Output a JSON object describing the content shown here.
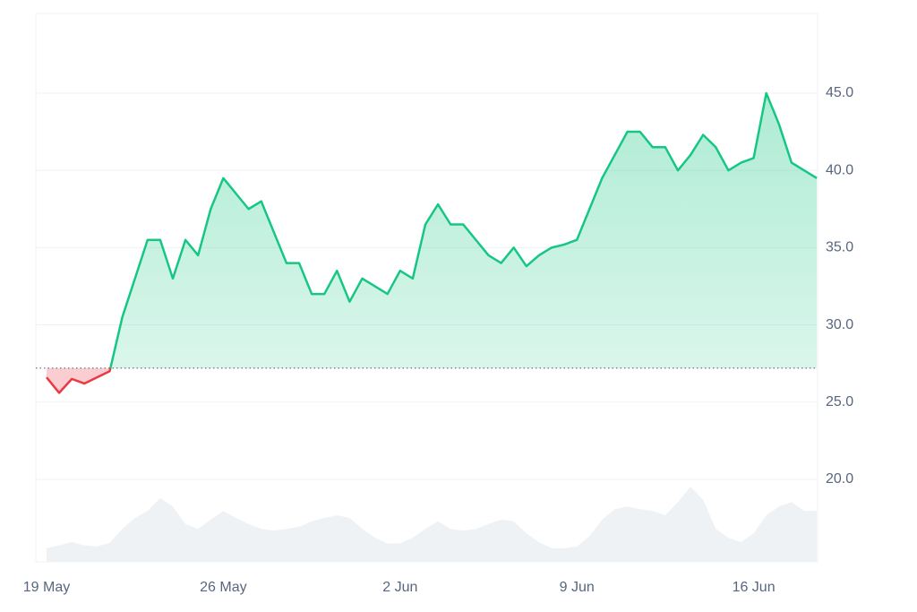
{
  "chart_data": {
    "type": "line",
    "categories": [
      "19 May",
      null,
      null,
      null,
      null,
      null,
      null,
      null,
      null,
      null,
      null,
      null,
      null,
      null,
      "26 May",
      null,
      null,
      null,
      null,
      null,
      null,
      null,
      null,
      null,
      null,
      null,
      null,
      null,
      "2 Jun",
      null,
      null,
      null,
      null,
      null,
      null,
      null,
      null,
      null,
      null,
      null,
      null,
      null,
      "9 Jun",
      null,
      null,
      null,
      null,
      null,
      null,
      null,
      null,
      null,
      null,
      null,
      null,
      null,
      "16 Jun",
      null,
      null,
      null,
      null,
      null
    ],
    "values": [
      26.6,
      25.6,
      26.5,
      26.2,
      26.6,
      27.0,
      30.5,
      33.0,
      35.5,
      35.5,
      33.0,
      35.5,
      34.5,
      37.5,
      39.5,
      38.5,
      37.5,
      38.0,
      36.0,
      34.0,
      34.0,
      32.0,
      32.0,
      33.5,
      31.5,
      33.0,
      32.5,
      32.0,
      33.5,
      33.0,
      36.5,
      37.8,
      36.5,
      36.5,
      35.5,
      34.5,
      34.0,
      35.0,
      33.8,
      34.5,
      35.0,
      35.2,
      35.5,
      37.5,
      39.5,
      41.0,
      42.5,
      42.5,
      41.5,
      41.5,
      40.0,
      41.0,
      42.3,
      41.5,
      40.0,
      40.5,
      40.8,
      45.0,
      43.0,
      40.5,
      40.0,
      39.5
    ],
    "baseline": 27.2,
    "up_color": "#16c784",
    "down_color": "#ea3943",
    "volume": {
      "values": [
        2.5,
        3.0,
        3.6,
        3.0,
        2.8,
        3.5,
        6.0,
        8.0,
        9.3,
        11.6,
        10.1,
        6.9,
        6.0,
        7.7,
        9.3,
        8.0,
        6.9,
        6.0,
        5.7,
        6.0,
        6.4,
        7.4,
        8.0,
        8.5,
        8.0,
        6.0,
        4.4,
        3.3,
        3.4,
        4.4,
        6.0,
        7.4,
        6.0,
        5.7,
        6.0,
        6.9,
        7.7,
        7.4,
        5.2,
        3.6,
        2.5,
        2.5,
        2.8,
        4.7,
        7.7,
        9.6,
        10.1,
        9.6,
        9.3,
        8.5,
        10.9,
        13.7,
        11.3,
        6.0,
        4.4,
        3.6,
        5.2,
        8.5,
        10.1,
        10.9,
        9.3,
        9.3
      ],
      "color": "#eff2f5",
      "y2lim": [
        0,
        100
      ]
    },
    "ylim": [
      14.66,
      50.16
    ],
    "yticks": [
      {
        "value": 20,
        "label": "20.0"
      },
      {
        "value": 25,
        "label": "25.0"
      },
      {
        "value": 30,
        "label": "30.0"
      },
      {
        "value": 35,
        "label": "35.0"
      },
      {
        "value": 40,
        "label": "40.0"
      },
      {
        "value": 45,
        "label": "45.0"
      }
    ],
    "grid": true
  }
}
